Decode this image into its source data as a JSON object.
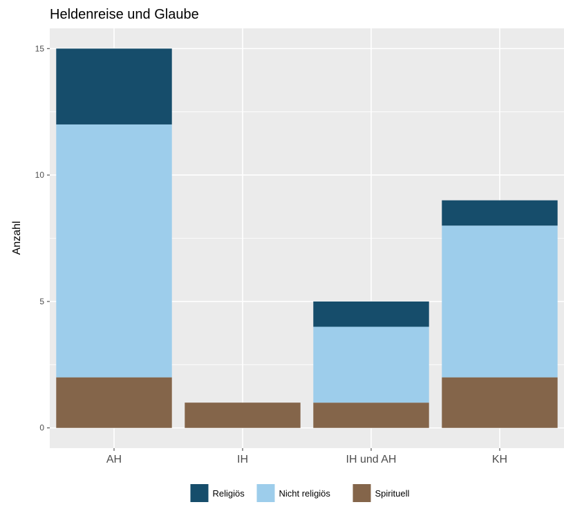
{
  "chart_data": {
    "type": "bar",
    "stacked": true,
    "title": "Heldenreise und Glaube",
    "xlabel": "",
    "ylabel": "Anzahl",
    "categories": [
      "AH",
      "IH",
      "IH und AH",
      "KH"
    ],
    "ylim": [
      -0.8,
      15.8
    ],
    "yticks": [
      0,
      5,
      10,
      15
    ],
    "grid": true,
    "legend_position": "bottom",
    "stack_order_bottom_to_top": [
      "Spirituell",
      "Nicht religiös",
      "Religiös"
    ],
    "series": [
      {
        "name": "Religiös",
        "values": [
          3,
          0,
          1,
          1
        ],
        "color": "#164d6b"
      },
      {
        "name": "Nicht religiös",
        "values": [
          10,
          0,
          3,
          6
        ],
        "color": "#9dcdeb"
      },
      {
        "name": "Spirituell",
        "values": [
          2,
          1,
          1,
          2
        ],
        "color": "#84654a"
      }
    ],
    "legend_labels": [
      "Religiös",
      "Nicht religiös",
      "Spirituell"
    ],
    "panel_background": "#ebebeb",
    "gridline_color": "#ffffff"
  }
}
